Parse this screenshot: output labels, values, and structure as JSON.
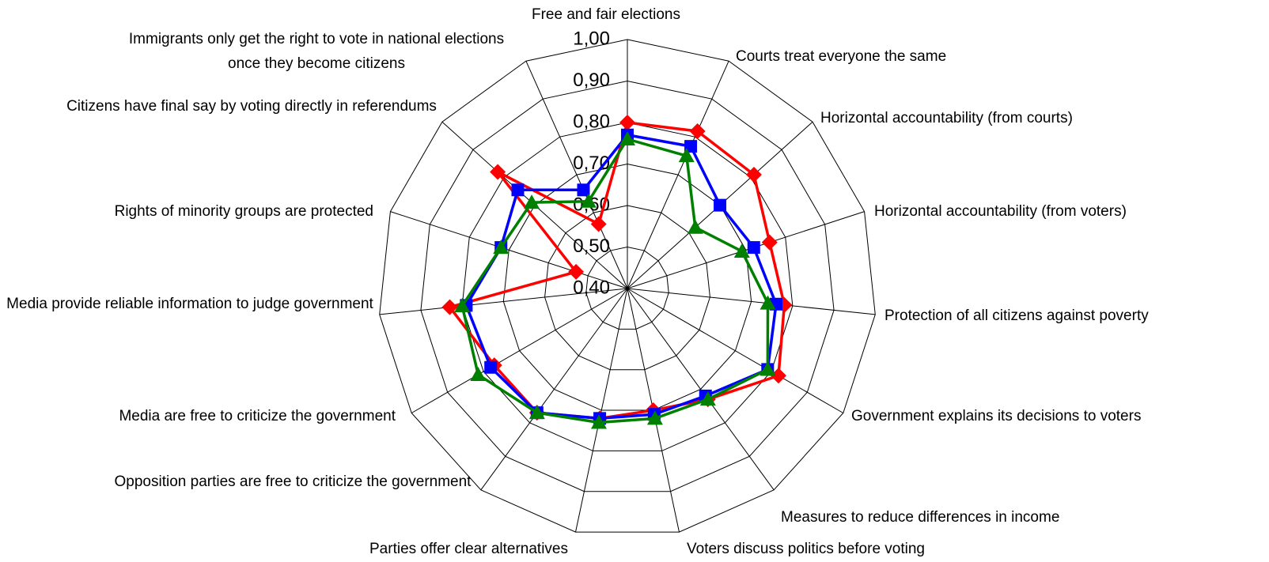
{
  "chart_data": {
    "type": "radar",
    "categories": [
      "Free and fair elections",
      "Courts treat everyone the same",
      "Horizontal accountability (from courts)",
      "Horizontal accountability (from voters)",
      "Protection of all citizens against poverty",
      "Government explains its decisions to voters",
      "Measures to reduce differences in income",
      "Voters discuss politics before voting",
      "Parties offer clear alternatives",
      "Opposition parties are free to criticize the government",
      "Media are free to criticize the government",
      "Media provide reliable information to judge government",
      "Rights of minority groups are protected",
      "Citizens have final say by voting directly in referendums",
      "Immigrants only get the right to vote in national elections once they become citizens"
    ],
    "series": [
      {
        "color": "#ff0000",
        "marker": "diamond",
        "values": [
          0.8,
          0.815,
          0.81,
          0.76,
          0.78,
          0.82,
          0.73,
          0.7,
          0.72,
          0.77,
          0.77,
          0.83,
          0.53,
          0.82,
          0.57
        ]
      },
      {
        "color": "#0000ff",
        "marker": "square",
        "values": [
          0.77,
          0.775,
          0.7,
          0.72,
          0.76,
          0.79,
          0.72,
          0.71,
          0.72,
          0.77,
          0.78,
          0.79,
          0.72,
          0.755,
          0.66
        ]
      },
      {
        "color": "#008000",
        "marker": "triangle",
        "values": [
          0.76,
          0.75,
          0.62,
          0.69,
          0.74,
          0.79,
          0.73,
          0.72,
          0.73,
          0.77,
          0.815,
          0.8,
          0.72,
          0.71,
          0.63
        ]
      }
    ],
    "ylim": [
      0.4,
      1.0
    ],
    "yticks": [
      {
        "value": 0.4,
        "label": "0,40"
      },
      {
        "value": 0.5,
        "label": "0,50"
      },
      {
        "value": 0.6,
        "label": "0,60"
      },
      {
        "value": 0.7,
        "label": "0,70"
      },
      {
        "value": 0.8,
        "label": "0,80"
      },
      {
        "value": 0.9,
        "label": "0,90"
      },
      {
        "value": 1.0,
        "label": "1,00"
      }
    ],
    "grid": true
  }
}
